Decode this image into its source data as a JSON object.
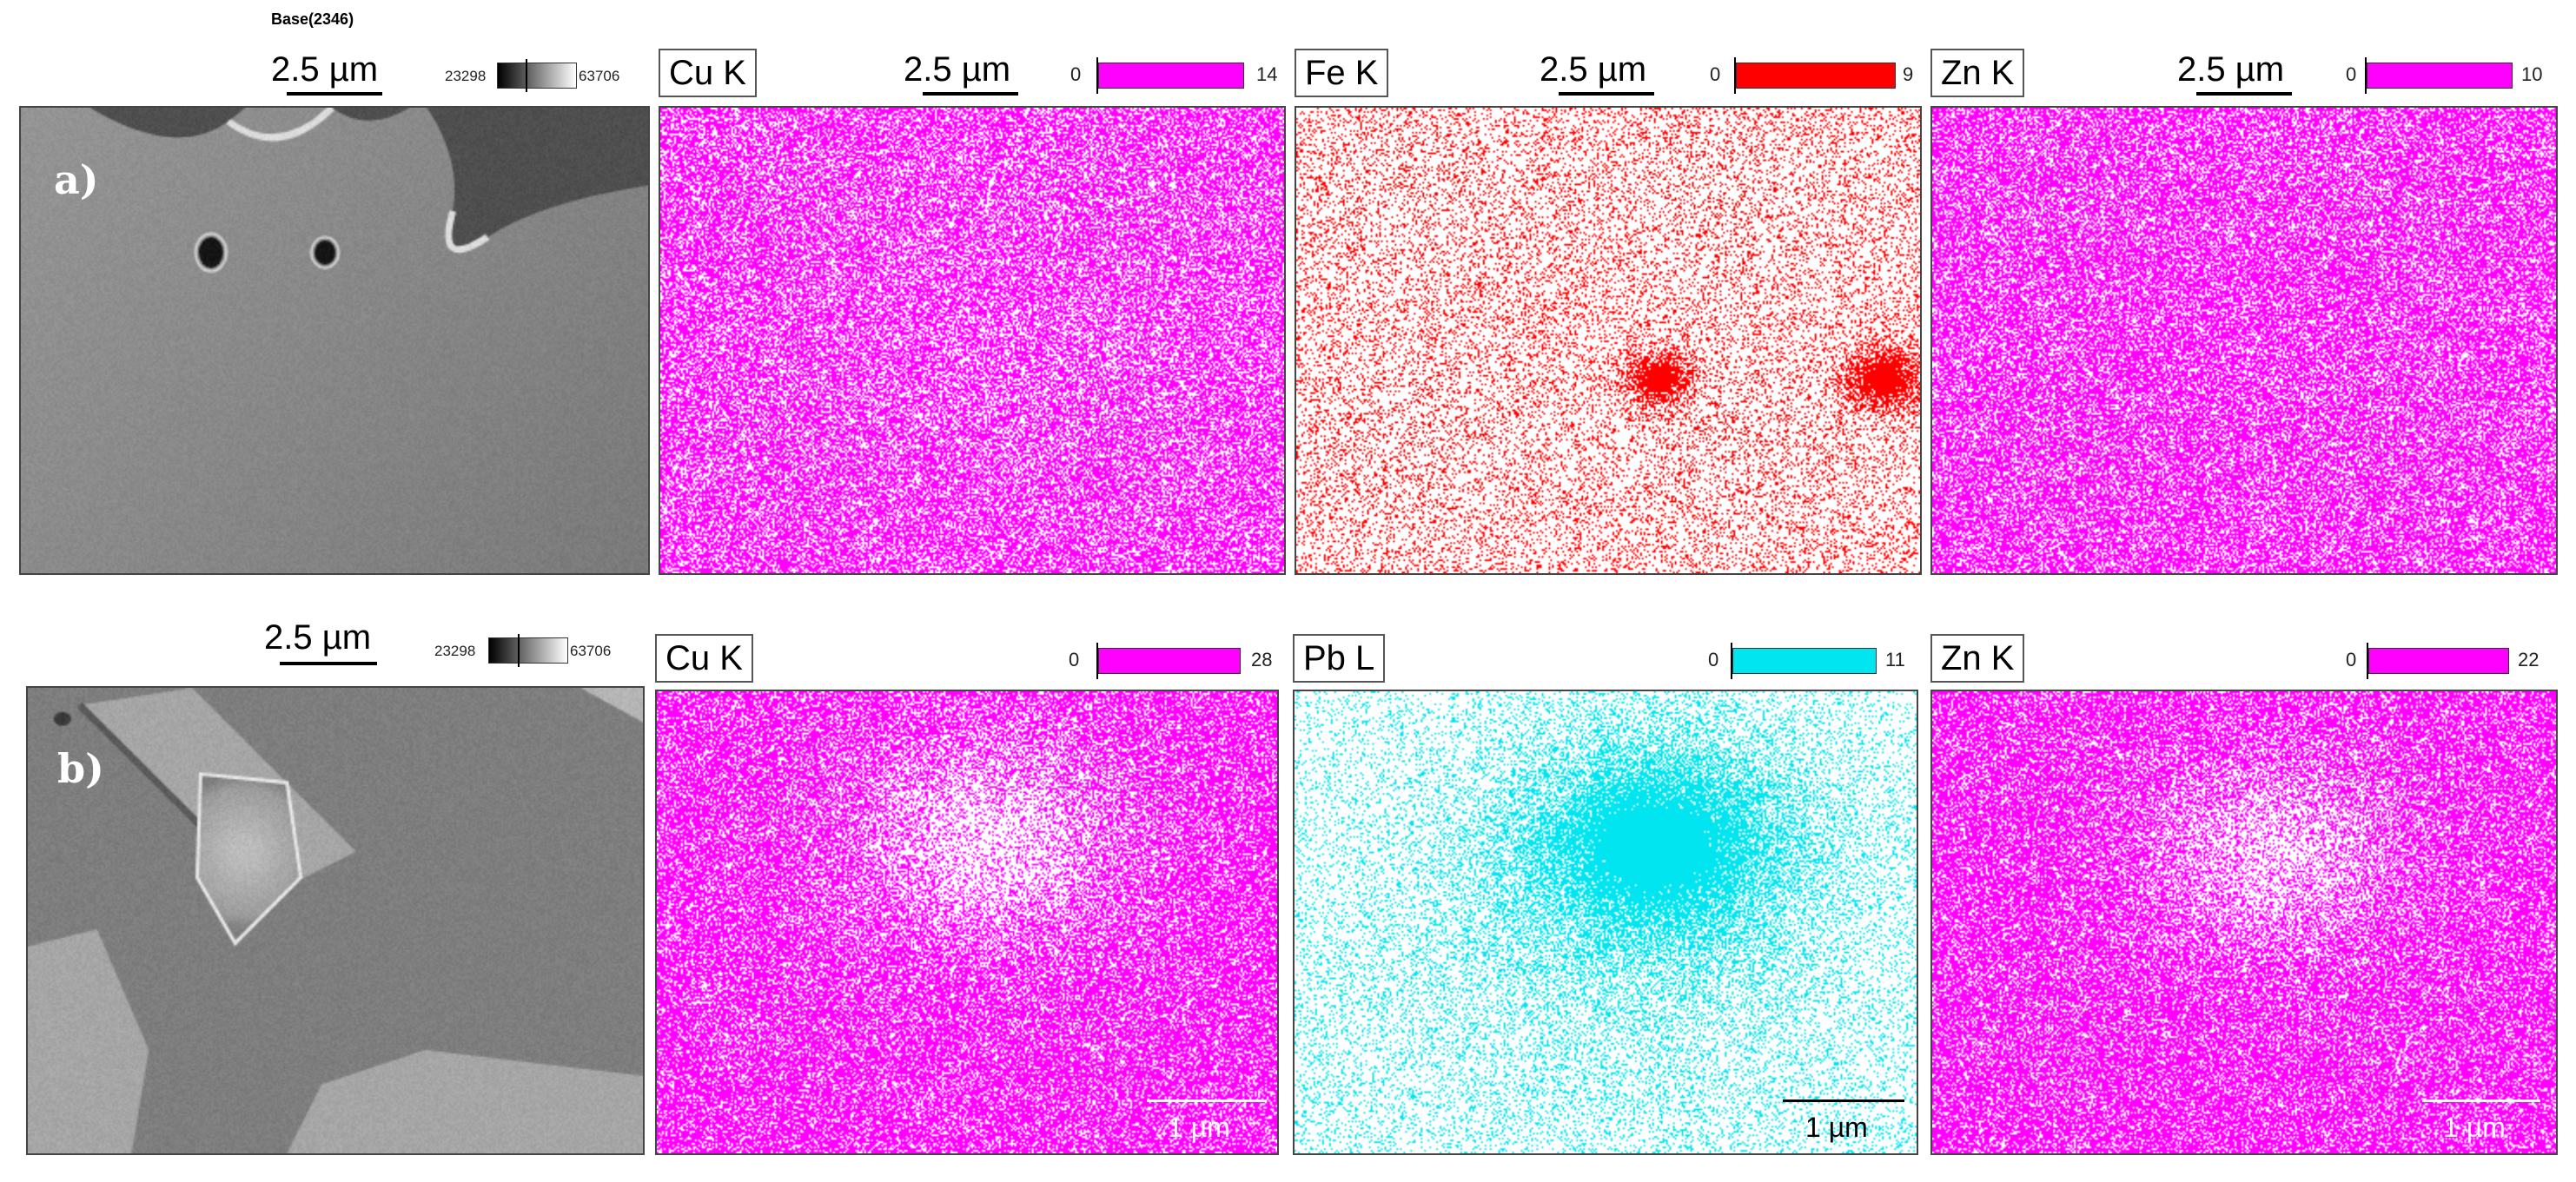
{
  "figure": {
    "base_title": "Base(2346)",
    "grayscale_colorbar": {
      "min": "23298",
      "max": "63706"
    },
    "rows": [
      {
        "label": "a)",
        "sem": {
          "scale": "2.5 µm"
        },
        "maps": [
          {
            "element": "Cu K",
            "scale": "2.5 µm",
            "cb_min": "0",
            "cb_max": "14",
            "color": "#ff00ff"
          },
          {
            "element": "Fe K",
            "scale": "2.5 µm",
            "cb_min": "0",
            "cb_max": "9",
            "color": "#ff0000"
          },
          {
            "element": "Zn K",
            "scale": "2.5 µm",
            "cb_min": "0",
            "cb_max": "10",
            "color": "#ff00ff"
          }
        ]
      },
      {
        "label": "b)",
        "sem": {
          "scale": "2.5 µm"
        },
        "maps": [
          {
            "element": "Cu K",
            "cb_min": "0",
            "cb_max": "28",
            "color": "#ff00ff",
            "inset_scale": "1 µm"
          },
          {
            "element": "Pb L",
            "cb_min": "0",
            "cb_max": "11",
            "color": "#00e5f0",
            "inset_scale": "1 µm"
          },
          {
            "element": "Zn K",
            "cb_min": "0",
            "cb_max": "22",
            "color": "#ff00ff",
            "inset_scale": "1 µm"
          }
        ]
      }
    ]
  }
}
